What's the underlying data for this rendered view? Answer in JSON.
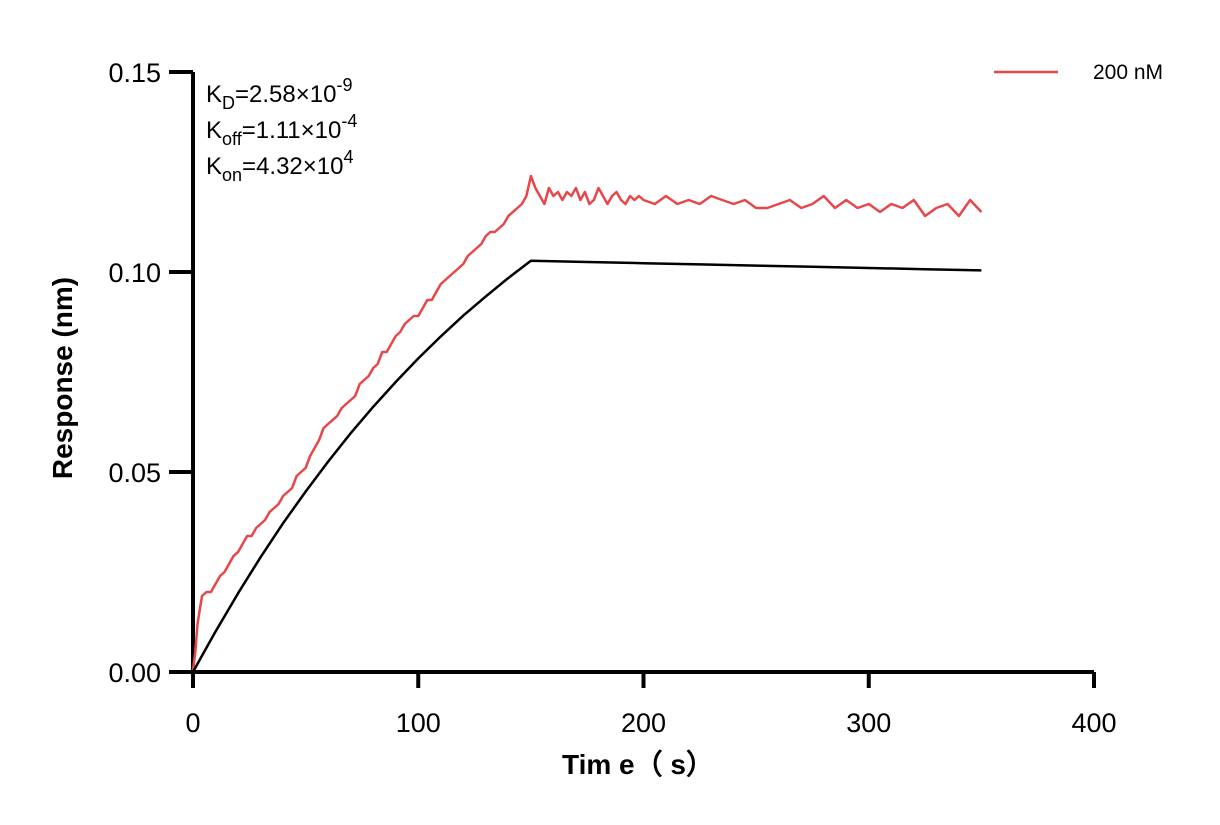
{
  "chart_data": {
    "type": "line",
    "title": "",
    "xlabel": "Tim e（ s）",
    "ylabel": "Response (nm)",
    "xlim": [
      0,
      400
    ],
    "ylim": [
      0,
      0.15
    ],
    "x_ticks": [
      "0",
      "100",
      "200",
      "300",
      "400"
    ],
    "y_ticks": [
      "0.00",
      "0.05",
      "0.10",
      "0.15"
    ],
    "grid": false,
    "legend": {
      "position": "top-right",
      "entries": [
        "200 nM"
      ]
    },
    "annotations": [
      {
        "base": "K",
        "sub": "D",
        "rest": "=2.58×10",
        "sup": "-9"
      },
      {
        "base": "K",
        "sub": "off",
        "rest": "=1.11×10",
        "sup": "-4"
      },
      {
        "base": "K",
        "sub": "on",
        "rest": "=4.32×10",
        "sup": "4"
      }
    ],
    "series": [
      {
        "name": "200 nM",
        "color": "#e8474a",
        "x": [
          0,
          1,
          2,
          4,
          6,
          8,
          10,
          12,
          14,
          16,
          18,
          20,
          22,
          24,
          26,
          28,
          30,
          32,
          34,
          36,
          38,
          40,
          42,
          44,
          46,
          48,
          50,
          52,
          54,
          56,
          58,
          60,
          62,
          64,
          66,
          68,
          70,
          72,
          74,
          76,
          78,
          80,
          82,
          84,
          86,
          88,
          90,
          92,
          94,
          96,
          98,
          100,
          102,
          104,
          106,
          108,
          110,
          112,
          114,
          116,
          118,
          120,
          122,
          124,
          126,
          128,
          130,
          132,
          134,
          136,
          138,
          140,
          142,
          144,
          146,
          148,
          150,
          152,
          154,
          156,
          158,
          160,
          162,
          164,
          166,
          168,
          170,
          172,
          174,
          176,
          178,
          180,
          182,
          184,
          186,
          188,
          190,
          192,
          194,
          196,
          198,
          200,
          205,
          210,
          215,
          220,
          225,
          230,
          235,
          240,
          245,
          250,
          255,
          260,
          265,
          270,
          275,
          280,
          285,
          290,
          295,
          300,
          305,
          310,
          315,
          320,
          325,
          330,
          335,
          340,
          345,
          350
        ],
        "values": [
          0.0005,
          0.005,
          0.012,
          0.019,
          0.02,
          0.02,
          0.022,
          0.024,
          0.025,
          0.027,
          0.029,
          0.03,
          0.032,
          0.034,
          0.034,
          0.036,
          0.037,
          0.038,
          0.04,
          0.041,
          0.042,
          0.044,
          0.045,
          0.046,
          0.049,
          0.05,
          0.051,
          0.054,
          0.056,
          0.058,
          0.061,
          0.062,
          0.063,
          0.064,
          0.066,
          0.067,
          0.068,
          0.069,
          0.072,
          0.073,
          0.074,
          0.076,
          0.077,
          0.08,
          0.08,
          0.082,
          0.084,
          0.085,
          0.087,
          0.088,
          0.089,
          0.089,
          0.091,
          0.093,
          0.093,
          0.095,
          0.097,
          0.098,
          0.099,
          0.1,
          0.101,
          0.102,
          0.104,
          0.105,
          0.106,
          0.107,
          0.109,
          0.11,
          0.11,
          0.111,
          0.112,
          0.114,
          0.115,
          0.116,
          0.117,
          0.119,
          0.124,
          0.121,
          0.119,
          0.117,
          0.121,
          0.119,
          0.12,
          0.118,
          0.12,
          0.119,
          0.121,
          0.118,
          0.12,
          0.117,
          0.118,
          0.121,
          0.119,
          0.117,
          0.119,
          0.12,
          0.118,
          0.117,
          0.119,
          0.118,
          0.119,
          0.118,
          0.117,
          0.119,
          0.117,
          0.118,
          0.117,
          0.119,
          0.118,
          0.117,
          0.118,
          0.116,
          0.116,
          0.117,
          0.118,
          0.116,
          0.117,
          0.119,
          0.116,
          0.118,
          0.116,
          0.117,
          0.115,
          0.117,
          0.116,
          0.118,
          0.114,
          0.116,
          0.117,
          0.114,
          0.118,
          0.115
        ]
      },
      {
        "color": "#000000",
        "x": [
          0,
          5,
          10,
          20,
          30,
          40,
          50,
          60,
          70,
          80,
          90,
          100,
          110,
          120,
          130,
          140,
          150,
          175,
          200,
          225,
          250,
          275,
          300,
          325,
          350
        ],
        "values": [
          0,
          0.0051,
          0.0101,
          0.0197,
          0.0287,
          0.0372,
          0.0451,
          0.0526,
          0.0597,
          0.0663,
          0.0725,
          0.0784,
          0.0839,
          0.0891,
          0.0939,
          0.0985,
          0.1028,
          0.1025,
          0.1022,
          0.1019,
          0.1016,
          0.1013,
          0.101,
          0.1007,
          0.1004
        ]
      }
    ]
  }
}
